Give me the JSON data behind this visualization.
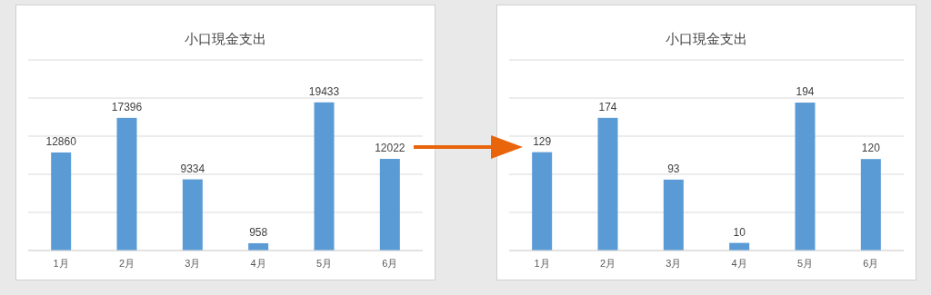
{
  "chart_data": [
    {
      "type": "bar",
      "title": "小口現金支出",
      "categories": [
        "1月",
        "2月",
        "3月",
        "4月",
        "5月",
        "6月"
      ],
      "values": [
        12860,
        17396,
        9334,
        958,
        19433,
        12022
      ],
      "color": "#5b9bd5",
      "ylim": [
        0,
        25000
      ],
      "yticks": [
        {
          "value": 0,
          "label": null
        },
        {
          "value": 5000,
          "label": null
        },
        {
          "value": 10000,
          "label": null
        },
        {
          "value": 15000,
          "label": null
        },
        {
          "value": 20000,
          "label": null
        },
        {
          "value": 25000,
          "label": null
        }
      ],
      "grid": "y",
      "data_labels": true,
      "tick_labels": "x"
    },
    {
      "type": "bar",
      "title": "小口現金支出",
      "categories": [
        "1月",
        "2月",
        "3月",
        "4月",
        "5月",
        "6月"
      ],
      "values": [
        129,
        174,
        93,
        10,
        194,
        120
      ],
      "color": "#5b9bd5",
      "ylim": [
        0,
        250
      ],
      "yticks": [
        {
          "value": 0,
          "label": null
        },
        {
          "value": 50,
          "label": null
        },
        {
          "value": 100,
          "label": null
        },
        {
          "value": 150,
          "label": null
        },
        {
          "value": 200,
          "label": null
        },
        {
          "value": 250,
          "label": null
        }
      ],
      "grid": "y",
      "data_labels": true,
      "tick_labels": "x"
    }
  ]
}
